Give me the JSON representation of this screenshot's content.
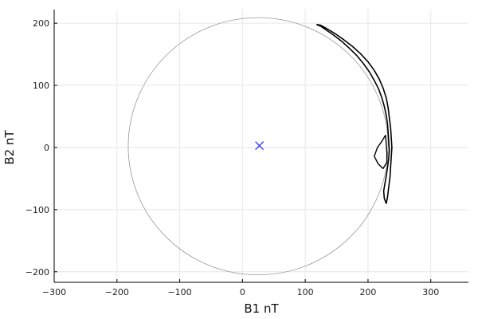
{
  "chart_data": {
    "type": "scatter",
    "xlabel": "B1 nT",
    "ylabel": "B2 nT",
    "xlim": [
      -300,
      360
    ],
    "ylim": [
      -217,
      222
    ],
    "xticks": [
      -300,
      -200,
      -100,
      0,
      100,
      200,
      300
    ],
    "yticks": [
      -200,
      -100,
      0,
      100,
      200
    ],
    "grid": true,
    "legend": "none",
    "circle": {
      "center": [
        25,
        2
      ],
      "radius": 207,
      "color": "#999999"
    },
    "center_marker": {
      "x": 27,
      "y": 3,
      "marker": "x",
      "color": "#3333ff"
    },
    "trace": {
      "color": "#000000",
      "points": [
        [
          118,
          198
        ],
        [
          125,
          195
        ],
        [
          135,
          188
        ],
        [
          145,
          181
        ],
        [
          158,
          171
        ],
        [
          170,
          160
        ],
        [
          182,
          148
        ],
        [
          192,
          136
        ],
        [
          202,
          122
        ],
        [
          210,
          108
        ],
        [
          217,
          94
        ],
        [
          222,
          80
        ],
        [
          226,
          66
        ],
        [
          229,
          52
        ],
        [
          231,
          38
        ],
        [
          232,
          24
        ],
        [
          233,
          10
        ],
        [
          234,
          -4
        ],
        [
          233,
          -18
        ],
        [
          231,
          -32
        ],
        [
          229,
          -46
        ],
        [
          227,
          -58
        ],
        [
          225,
          -70
        ],
        [
          226,
          -82
        ],
        [
          229,
          -90
        ],
        [
          231,
          -80
        ],
        [
          233,
          -64
        ],
        [
          235,
          -48
        ],
        [
          236,
          -32
        ],
        [
          237,
          -16
        ],
        [
          238,
          0
        ],
        [
          237,
          16
        ],
        [
          236,
          32
        ],
        [
          234,
          48
        ],
        [
          232,
          64
        ],
        [
          229,
          80
        ],
        [
          224,
          96
        ],
        [
          218,
          110
        ],
        [
          210,
          124
        ],
        [
          200,
          138
        ],
        [
          188,
          151
        ],
        [
          175,
          163
        ],
        [
          162,
          173
        ],
        [
          148,
          183
        ],
        [
          135,
          191
        ],
        [
          124,
          197
        ],
        [
          118,
          198
        ]
      ],
      "inner_loop": [
        [
          228,
          20
        ],
        [
          222,
          10
        ],
        [
          215,
          0
        ],
        [
          210,
          -14
        ],
        [
          216,
          -26
        ],
        [
          224,
          -34
        ],
        [
          230,
          -24
        ],
        [
          230,
          -8
        ],
        [
          229,
          6
        ],
        [
          228,
          20
        ]
      ]
    }
  }
}
